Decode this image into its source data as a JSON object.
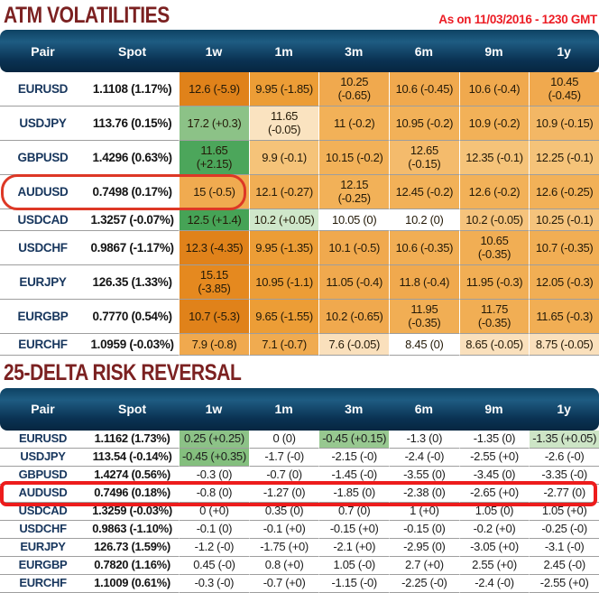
{
  "titles": {
    "atm": "ATM VOLATILITIES",
    "timestamp": "As on 11/03/2016 - 1230 GMT",
    "rr": "25-DELTA RISK REVERSAL"
  },
  "columns": [
    "Pair",
    "Spot",
    "1w",
    "1m",
    "3m",
    "6m",
    "9m",
    "1y"
  ],
  "colors": {
    "section_title": "#7B2121",
    "timestamp_red": "#EC1C24",
    "header_band_top": "#1E5C82",
    "header_band_bottom": "#062640",
    "pair_text": "#17365D",
    "row_divider": "#9E9E9E",
    "annotation_red": "#DD3826"
  },
  "atm": {
    "rows": [
      {
        "pair": "EURUSD",
        "spot": "1.1108 (1.17%)",
        "cells": [
          {
            "v": "12.6 (-5.9)",
            "bg": "#E0821A"
          },
          {
            "v": "9.95 (-1.85)",
            "bg": "#EC9D36"
          },
          {
            "v": "10.25 (-0.65)",
            "bg": "#F0A94E",
            "wrap": true
          },
          {
            "v": "10.6 (-0.45)",
            "bg": "#F0A94E"
          },
          {
            "v": "10.6 (-0.4)",
            "bg": "#F0A94E"
          },
          {
            "v": "10.45 (-0.45)",
            "bg": "#F0A94E",
            "wrap": true
          }
        ]
      },
      {
        "pair": "USDJPY",
        "spot": "113.76 (0.15%)",
        "cells": [
          {
            "v": "17.2 (+0.3)",
            "bg": "#8CC287"
          },
          {
            "v": "11.65 (-0.05)",
            "bg": "#FAE3C0",
            "wrap": true
          },
          {
            "v": "11 (-0.2)",
            "bg": "#F2B158"
          },
          {
            "v": "10.95 (-0.2)",
            "bg": "#F2B158"
          },
          {
            "v": "10.9 (-0.2)",
            "bg": "#F2B158"
          },
          {
            "v": "10.9 (-0.15)",
            "bg": "#F3B765"
          }
        ]
      },
      {
        "pair": "GBPUSD",
        "spot": "1.4296 (0.63%)",
        "cells": [
          {
            "v": "11.65 (+2.15)",
            "bg": "#4CA65B",
            "wrap": true
          },
          {
            "v": "9.9 (-0.1)",
            "bg": "#F5C379"
          },
          {
            "v": "10.15 (-0.2)",
            "bg": "#F2B158"
          },
          {
            "v": "12.65 (-0.15)",
            "bg": "#F4BB6C",
            "wrap": true
          },
          {
            "v": "12.35 (-0.1)",
            "bg": "#F5C379"
          },
          {
            "v": "12.25 (-0.1)",
            "bg": "#F5C379"
          }
        ]
      },
      {
        "pair": "AUDUSD",
        "spot": "0.7498 (0.17%)",
        "cells": [
          {
            "v": "15 (-0.5)",
            "bg": "#F0AB50"
          },
          {
            "v": "12.1 (-0.27)",
            "bg": "#F1AE54"
          },
          {
            "v": "12.15 (-0.25)",
            "bg": "#F2B158",
            "wrap": true
          },
          {
            "v": "12.45 (-0.2)",
            "bg": "#F2B158"
          },
          {
            "v": "12.6 (-0.2)",
            "bg": "#F2B158"
          },
          {
            "v": "12.6 (-0.25)",
            "bg": "#F2B158"
          }
        ]
      },
      {
        "pair": "USDCAD",
        "spot": "1.3257 (-0.07%)",
        "cells": [
          {
            "v": "12.5 (+1.4)",
            "bg": "#46A356"
          },
          {
            "v": "10.2 (+0.05)",
            "bg": "#CFE7CA"
          },
          {
            "v": "10.05 (0)",
            "bg": "#FFFFFF"
          },
          {
            "v": "10.2 (0)",
            "bg": "#FFFFFF"
          },
          {
            "v": "10.2 (-0.05)",
            "bg": "#F5C37C"
          },
          {
            "v": "10.25 (-0.1)",
            "bg": "#F5C37C"
          }
        ]
      },
      {
        "pair": "USDCHF",
        "spot": "0.9867 (-1.17%)",
        "cells": [
          {
            "v": "12.3 (-4.35)",
            "bg": "#E0821A"
          },
          {
            "v": "9.95 (-1.35)",
            "bg": "#EC9D36"
          },
          {
            "v": "10.1 (-0.5)",
            "bg": "#F0A94E"
          },
          {
            "v": "10.6 (-0.35)",
            "bg": "#F1AE54"
          },
          {
            "v": "10.65 (-0.35)",
            "bg": "#F1AE54",
            "wrap": true
          },
          {
            "v": "10.7 (-0.35)",
            "bg": "#F1AE54"
          }
        ]
      },
      {
        "pair": "EURJPY",
        "spot": "126.35 (1.33%)",
        "cells": [
          {
            "v": "15.15 (-3.85)",
            "bg": "#E5891F",
            "wrap": true
          },
          {
            "v": "10.95 (-1.1)",
            "bg": "#EC9D36"
          },
          {
            "v": "11.05 (-0.4)",
            "bg": "#F0A94E"
          },
          {
            "v": "11.8 (-0.4)",
            "bg": "#F0A94E"
          },
          {
            "v": "11.95 (-0.3)",
            "bg": "#F1AE54"
          },
          {
            "v": "12.05 (-0.3)",
            "bg": "#F1AE54"
          }
        ]
      },
      {
        "pair": "EURGBP",
        "spot": "0.7770 (0.54%)",
        "cells": [
          {
            "v": "10.7 (-5.3)",
            "bg": "#E0821A"
          },
          {
            "v": "9.65 (-1.55)",
            "bg": "#EC9D36"
          },
          {
            "v": "10.2 (-0.65)",
            "bg": "#F0A94E"
          },
          {
            "v": "11.95 (-0.35)",
            "bg": "#F1AE54",
            "wrap": true
          },
          {
            "v": "11.75 (-0.35)",
            "bg": "#F1AE54",
            "wrap": true
          },
          {
            "v": "11.65 (-0.3)",
            "bg": "#F1AE54"
          }
        ]
      },
      {
        "pair": "EURCHF",
        "spot": "1.0959 (-0.03%)",
        "cells": [
          {
            "v": "7.9 (-0.8)",
            "bg": "#F0A94E"
          },
          {
            "v": "7.1 (-0.7)",
            "bg": "#F0AB50"
          },
          {
            "v": "7.6 (-0.05)",
            "bg": "#FAE0BC"
          },
          {
            "v": "8.45 (0)",
            "bg": "#FFFFFF"
          },
          {
            "v": "8.65 (-0.05)",
            "bg": "#FAE0BC"
          },
          {
            "v": "8.75 (-0.05)",
            "bg": "#FAE0BC"
          }
        ]
      }
    ]
  },
  "rr": {
    "rows": [
      {
        "pair": "EURUSD",
        "spot": "1.1162 (1.73%)",
        "cells": [
          {
            "v": "0.25 (+0.25)",
            "bg": "#8CC287"
          },
          {
            "v": "0 (0)"
          },
          {
            "v": "-0.45 (+0.15)",
            "bg": "#97C890"
          },
          {
            "v": "-1.3 (0)"
          },
          {
            "v": "-1.35 (0)"
          },
          {
            "v": "-1.35 (+0.05)",
            "bg": "#CDE5C6"
          }
        ]
      },
      {
        "pair": "USDJPY",
        "spot": "113.54 (-0.14%)",
        "cells": [
          {
            "v": "-0.45 (+0.35)",
            "bg": "#84BF7E"
          },
          {
            "v": "-1.7 (-0)"
          },
          {
            "v": "-2.15 (-0)"
          },
          {
            "v": "-2.4 (-0)"
          },
          {
            "v": "-2.55 (+0)"
          },
          {
            "v": "-2.6 (-0)"
          }
        ]
      },
      {
        "pair": "GBPUSD",
        "spot": "1.4274 (0.56%)",
        "cells": [
          {
            "v": "-0.3 (0)"
          },
          {
            "v": "-0.7 (0)"
          },
          {
            "v": "-1.45 (-0)"
          },
          {
            "v": "-3.55 (0)"
          },
          {
            "v": "-3.45 (0)"
          },
          {
            "v": "-3.35 (-0)"
          }
        ]
      },
      {
        "pair": "AUDUSD",
        "spot": "0.7496 (0.18%)",
        "cells": [
          {
            "v": "-0.8 (0)"
          },
          {
            "v": "-1.27 (0)"
          },
          {
            "v": "-1.85 (0)"
          },
          {
            "v": "-2.38 (0)"
          },
          {
            "v": "-2.65 (+0)"
          },
          {
            "v": "-2.77 (0)"
          }
        ]
      },
      {
        "pair": "USDCAD",
        "spot": "1.3259 (-0.03%)",
        "cells": [
          {
            "v": "0 (+0)"
          },
          {
            "v": "0.35 (0)"
          },
          {
            "v": "0.7 (0)"
          },
          {
            "v": "1 (+0)"
          },
          {
            "v": "1.05 (0)"
          },
          {
            "v": "1.05 (+0)"
          }
        ]
      },
      {
        "pair": "USDCHF",
        "spot": "0.9863 (-1.10%)",
        "cells": [
          {
            "v": "-0.1 (0)"
          },
          {
            "v": "-0.1 (+0)"
          },
          {
            "v": "-0.15 (+0)"
          },
          {
            "v": "-0.15 (0)"
          },
          {
            "v": "-0.2 (+0)"
          },
          {
            "v": "-0.25 (-0)"
          }
        ]
      },
      {
        "pair": "EURJPY",
        "spot": "126.73 (1.59%)",
        "cells": [
          {
            "v": "-1.2 (-0)"
          },
          {
            "v": "-1.75 (+0)"
          },
          {
            "v": "-2.1 (+0)"
          },
          {
            "v": "-2.95 (0)"
          },
          {
            "v": "-3.05 (+0)"
          },
          {
            "v": "-3.1 (-0)"
          }
        ]
      },
      {
        "pair": "EURGBP",
        "spot": "0.7820 (1.16%)",
        "cells": [
          {
            "v": "0.45 (-0)"
          },
          {
            "v": "0.8 (+0)"
          },
          {
            "v": "1.05 (-0)"
          },
          {
            "v": "2.7 (+0)"
          },
          {
            "v": "2.55 (+0)"
          },
          {
            "v": "2.45 (-0)"
          }
        ]
      },
      {
        "pair": "EURCHF",
        "spot": "1.1009 (0.61%)",
        "cells": [
          {
            "v": "-0.3 (-0)"
          },
          {
            "v": "-0.7 (+0)"
          },
          {
            "v": "-1.15 (-0)"
          },
          {
            "v": "-2.25 (-0)"
          },
          {
            "v": "-2.4 (-0)"
          },
          {
            "v": "-2.55 (+0)"
          }
        ]
      }
    ]
  },
  "annotations": {
    "atm_oval": {
      "target_row": "AUDUSD",
      "covers": "Pair, Spot, 1w",
      "shape": "oval"
    },
    "rr_box": {
      "target_row": "AUDUSD",
      "covers": "entire row",
      "shape": "rectangle"
    }
  }
}
